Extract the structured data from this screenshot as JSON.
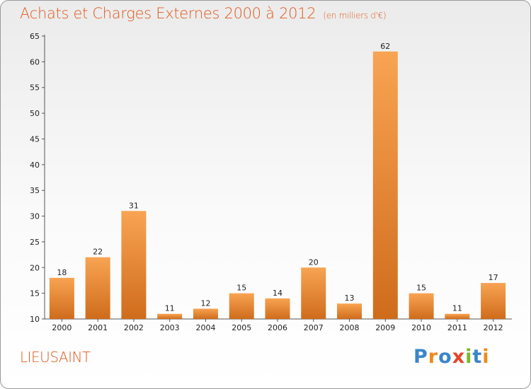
{
  "header": {
    "title": "Achats et Charges Externes 2000 à 2012",
    "unit": "(en milliers d'€)"
  },
  "footer": {
    "city": "LIEUSAINT",
    "logo_text": "Proxiti",
    "logo_colors": [
      "#3a86c8",
      "#f08a1c",
      "#3a86c8",
      "#e8442a",
      "#7ab82c",
      "#3a86c8",
      "#f08a1c"
    ]
  },
  "colors": {
    "title": "#e05a1e",
    "bar_light": "#f8a452",
    "bar_dark": "#cf6c1c"
  },
  "chart_data": {
    "type": "bar",
    "title": "Achats et Charges Externes 2000 à 2012",
    "subtitle": "(en milliers d'€)",
    "xlabel": "",
    "ylabel": "",
    "categories": [
      "2000",
      "2001",
      "2002",
      "2003",
      "2004",
      "2005",
      "2006",
      "2007",
      "2008",
      "2009",
      "2010",
      "2011",
      "2012"
    ],
    "values": [
      18,
      22,
      31,
      11,
      12,
      15,
      14,
      20,
      13,
      62,
      15,
      11,
      17
    ],
    "ylim": [
      10,
      65
    ],
    "yticks": [
      10,
      15,
      20,
      25,
      30,
      35,
      40,
      45,
      50,
      55,
      60,
      65
    ],
    "grid": false,
    "legend": "none"
  }
}
